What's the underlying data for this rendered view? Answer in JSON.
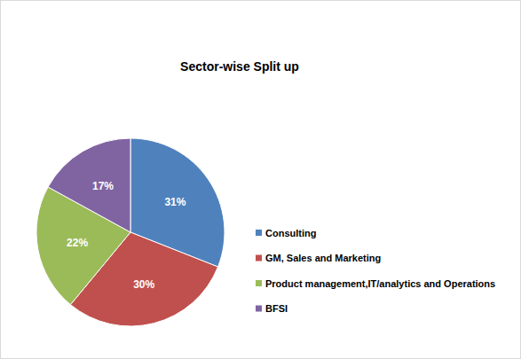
{
  "chart_data": {
    "type": "pie",
    "title": "Sector-wise Split up",
    "categories": [
      "Consulting",
      "GM, Sales and Marketing",
      "Product management,IT/analytics and Operations",
      "BFSI"
    ],
    "values": [
      31,
      30,
      22,
      17
    ],
    "value_labels": [
      "31%",
      "30%",
      "22%",
      "17%"
    ],
    "colors": [
      "#4f81bd",
      "#c0504d",
      "#9bbb59",
      "#8064a2"
    ],
    "data_labels": true,
    "legend": "right"
  }
}
